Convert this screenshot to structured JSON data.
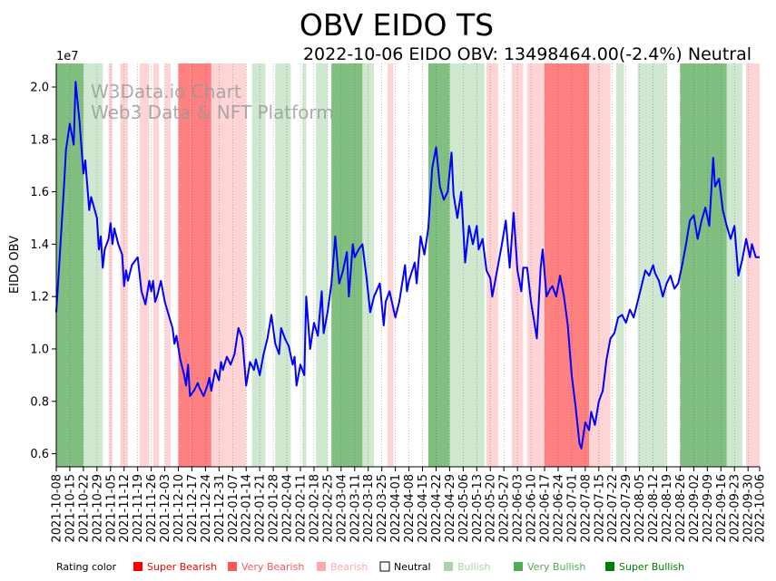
{
  "title": "OBV EIDO TS",
  "subtitle": "2022-10-06 EIDO OBV: 13498464.00(-2.4%) Neutral",
  "watermark": [
    "W3Data.io Chart",
    "Web3 Data & NFT Platform"
  ],
  "legend": {
    "label": "Rating color",
    "items": [
      {
        "label": "Super Bearish",
        "color": "#ff0000"
      },
      {
        "label": "Very Bearish",
        "color": "#ff5555"
      },
      {
        "label": "Bearish",
        "color": "#ffaaaa"
      },
      {
        "label": "Neutral",
        "color": "#ffffff"
      },
      {
        "label": "Bullish",
        "color": "#aad4aa"
      },
      {
        "label": "Very Bullish",
        "color": "#55aa55"
      },
      {
        "label": "Super Bullish",
        "color": "#008000"
      }
    ]
  },
  "colors": {
    "line": "#0000ff",
    "very_bullish": "#55aa55",
    "bullish": "#aad4aa",
    "very_bearish": "#ff5555",
    "bearish": "#ffaaaa"
  },
  "chart_data": {
    "type": "line",
    "ylabel": "EIDO OBV",
    "y_multiplier_label": "1e7",
    "ylim": [
      0.55,
      2.09
    ],
    "yticks": [
      "0.6",
      "0.8",
      "1.0",
      "1.2",
      "1.4",
      "1.6",
      "1.8",
      "2.0"
    ],
    "xticks": [
      "2021-10-08",
      "2021-10-15",
      "2021-10-22",
      "2021-10-29",
      "2021-11-05",
      "2021-11-12",
      "2021-11-19",
      "2021-11-26",
      "2021-12-03",
      "2021-12-10",
      "2021-12-17",
      "2021-12-24",
      "2021-12-31",
      "2022-01-07",
      "2022-01-14",
      "2022-01-21",
      "2022-01-28",
      "2022-02-04",
      "2022-02-11",
      "2022-02-18",
      "2022-02-25",
      "2022-03-04",
      "2022-03-11",
      "2022-03-18",
      "2022-03-25",
      "2022-04-01",
      "2022-04-08",
      "2022-04-15",
      "2022-04-22",
      "2022-04-29",
      "2022-05-06",
      "2022-05-13",
      "2022-05-20",
      "2022-05-27",
      "2022-06-03",
      "2022-06-10",
      "2022-06-17",
      "2022-06-24",
      "2022-07-01",
      "2022-07-08",
      "2022-07-15",
      "2022-07-22",
      "2022-07-29",
      "2022-08-05",
      "2022-08-12",
      "2022-08-19",
      "2022-08-26",
      "2022-09-02",
      "2022-09-09",
      "2022-09-16",
      "2022-09-23",
      "2022-09-30",
      "2022-10-06"
    ],
    "x_range": [
      "2021-10-08",
      "2022-10-06"
    ],
    "series": [
      {
        "values": [
          [
            "2021-10-08",
            1.14
          ],
          [
            "2021-10-10",
            1.38
          ],
          [
            "2021-10-12",
            1.62
          ],
          [
            "2021-10-13",
            1.76
          ],
          [
            "2021-10-15",
            1.86
          ],
          [
            "2021-10-17",
            1.78
          ],
          [
            "2021-10-18",
            2.02
          ],
          [
            "2021-10-20",
            1.87
          ],
          [
            "2021-10-22",
            1.67
          ],
          [
            "2021-10-23",
            1.72
          ],
          [
            "2021-10-25",
            1.53
          ],
          [
            "2021-10-26",
            1.58
          ],
          [
            "2021-10-29",
            1.5
          ],
          [
            "2021-10-30",
            1.38
          ],
          [
            "2021-10-31",
            1.43
          ],
          [
            "2021-11-01",
            1.31
          ],
          [
            "2021-11-02",
            1.38
          ],
          [
            "2021-11-04",
            1.42
          ],
          [
            "2021-11-05",
            1.48
          ],
          [
            "2021-11-06",
            1.4
          ],
          [
            "2021-11-07",
            1.46
          ],
          [
            "2021-11-09",
            1.4
          ],
          [
            "2021-11-11",
            1.36
          ],
          [
            "2021-11-12",
            1.24
          ],
          [
            "2021-11-13",
            1.3
          ],
          [
            "2021-11-14",
            1.26
          ],
          [
            "2021-11-16",
            1.32
          ],
          [
            "2021-11-19",
            1.35
          ],
          [
            "2021-11-21",
            1.22
          ],
          [
            "2021-11-23",
            1.17
          ],
          [
            "2021-11-25",
            1.26
          ],
          [
            "2021-11-26",
            1.22
          ],
          [
            "2021-11-27",
            1.26
          ],
          [
            "2021-11-28",
            1.18
          ],
          [
            "2021-11-29",
            1.2
          ],
          [
            "2021-12-01",
            1.26
          ],
          [
            "2021-12-03",
            1.18
          ],
          [
            "2021-12-05",
            1.13
          ],
          [
            "2021-12-07",
            1.08
          ],
          [
            "2021-12-08",
            1.02
          ],
          [
            "2021-12-09",
            1.05
          ],
          [
            "2021-12-11",
            0.96
          ],
          [
            "2021-12-13",
            0.9
          ],
          [
            "2021-12-14",
            0.86
          ],
          [
            "2021-12-15",
            0.94
          ],
          [
            "2021-12-16",
            0.82
          ],
          [
            "2021-12-18",
            0.84
          ],
          [
            "2021-12-20",
            0.87
          ],
          [
            "2021-12-21",
            0.85
          ],
          [
            "2021-12-23",
            0.82
          ],
          [
            "2021-12-25",
            0.86
          ],
          [
            "2021-12-26",
            0.89
          ],
          [
            "2021-12-27",
            0.84
          ],
          [
            "2021-12-29",
            0.92
          ],
          [
            "2021-12-31",
            0.88
          ],
          [
            "2022-01-01",
            0.95
          ],
          [
            "2022-01-02",
            0.92
          ],
          [
            "2022-01-04",
            0.97
          ],
          [
            "2022-01-06",
            0.94
          ],
          [
            "2022-01-08",
            0.98
          ],
          [
            "2022-01-10",
            1.08
          ],
          [
            "2022-01-12",
            1.04
          ],
          [
            "2022-01-14",
            0.86
          ],
          [
            "2022-01-16",
            0.95
          ],
          [
            "2022-01-18",
            0.92
          ],
          [
            "2022-01-19",
            0.96
          ],
          [
            "2022-01-21",
            0.9
          ],
          [
            "2022-01-23",
            0.98
          ],
          [
            "2022-01-25",
            1.04
          ],
          [
            "2022-01-27",
            1.13
          ],
          [
            "2022-01-29",
            1.02
          ],
          [
            "2022-01-31",
            0.98
          ],
          [
            "2022-02-01",
            1.08
          ],
          [
            "2022-02-03",
            1.04
          ],
          [
            "2022-02-05",
            1.01
          ],
          [
            "2022-02-07",
            0.94
          ],
          [
            "2022-02-08",
            0.97
          ],
          [
            "2022-02-09",
            0.86
          ],
          [
            "2022-02-11",
            0.94
          ],
          [
            "2022-02-13",
            0.9
          ],
          [
            "2022-02-14",
            1.2
          ],
          [
            "2022-02-16",
            1.0
          ],
          [
            "2022-02-18",
            1.1
          ],
          [
            "2022-02-20",
            1.05
          ],
          [
            "2022-02-22",
            1.22
          ],
          [
            "2022-02-23",
            1.06
          ],
          [
            "2022-02-25",
            1.14
          ],
          [
            "2022-02-27",
            1.25
          ],
          [
            "2022-03-01",
            1.43
          ],
          [
            "2022-03-03",
            1.25
          ],
          [
            "2022-03-05",
            1.3
          ],
          [
            "2022-03-07",
            1.37
          ],
          [
            "2022-03-08",
            1.2
          ],
          [
            "2022-03-10",
            1.4
          ],
          [
            "2022-03-11",
            1.35
          ],
          [
            "2022-03-13",
            1.38
          ],
          [
            "2022-03-15",
            1.4
          ],
          [
            "2022-03-17",
            1.28
          ],
          [
            "2022-03-19",
            1.14
          ],
          [
            "2022-03-21",
            1.2
          ],
          [
            "2022-03-24",
            1.25
          ],
          [
            "2022-03-26",
            1.09
          ],
          [
            "2022-03-27",
            1.18
          ],
          [
            "2022-03-29",
            1.22
          ],
          [
            "2022-04-01",
            1.12
          ],
          [
            "2022-04-03",
            1.18
          ],
          [
            "2022-04-06",
            1.32
          ],
          [
            "2022-04-07",
            1.22
          ],
          [
            "2022-04-08",
            1.26
          ],
          [
            "2022-04-11",
            1.33
          ],
          [
            "2022-04-12",
            1.25
          ],
          [
            "2022-04-14",
            1.43
          ],
          [
            "2022-04-16",
            1.36
          ],
          [
            "2022-04-18",
            1.46
          ],
          [
            "2022-04-20",
            1.69
          ],
          [
            "2022-04-22",
            1.77
          ],
          [
            "2022-04-24",
            1.62
          ],
          [
            "2022-04-26",
            1.57
          ],
          [
            "2022-04-28",
            1.6
          ],
          [
            "2022-04-30",
            1.75
          ],
          [
            "2022-05-01",
            1.59
          ],
          [
            "2022-05-03",
            1.5
          ],
          [
            "2022-05-05",
            1.6
          ],
          [
            "2022-05-07",
            1.33
          ],
          [
            "2022-05-09",
            1.47
          ],
          [
            "2022-05-11",
            1.4
          ],
          [
            "2022-05-13",
            1.47
          ],
          [
            "2022-05-14",
            1.38
          ],
          [
            "2022-05-16",
            1.42
          ],
          [
            "2022-05-18",
            1.3
          ],
          [
            "2022-05-20",
            1.27
          ],
          [
            "2022-05-21",
            1.2
          ],
          [
            "2022-05-24",
            1.32
          ],
          [
            "2022-05-26",
            1.4
          ],
          [
            "2022-05-28",
            1.49
          ],
          [
            "2022-05-30",
            1.31
          ],
          [
            "2022-06-01",
            1.52
          ],
          [
            "2022-06-03",
            1.3
          ],
          [
            "2022-06-05",
            1.22
          ],
          [
            "2022-06-06",
            1.31
          ],
          [
            "2022-06-08",
            1.31
          ],
          [
            "2022-06-10",
            1.18
          ],
          [
            "2022-06-13",
            1.04
          ],
          [
            "2022-06-15",
            1.31
          ],
          [
            "2022-06-16",
            1.38
          ],
          [
            "2022-06-18",
            1.2
          ],
          [
            "2022-06-20",
            1.23
          ],
          [
            "2022-06-21",
            1.24
          ],
          [
            "2022-06-23",
            1.2
          ],
          [
            "2022-06-25",
            1.28
          ],
          [
            "2022-06-27",
            1.2
          ],
          [
            "2022-06-29",
            1.09
          ],
          [
            "2022-07-01",
            0.9
          ],
          [
            "2022-07-03",
            0.78
          ],
          [
            "2022-07-05",
            0.64
          ],
          [
            "2022-07-06",
            0.62
          ],
          [
            "2022-07-08",
            0.72
          ],
          [
            "2022-07-10",
            0.69
          ],
          [
            "2022-07-11",
            0.76
          ],
          [
            "2022-07-13",
            0.71
          ],
          [
            "2022-07-15",
            0.8
          ],
          [
            "2022-07-17",
            0.84
          ],
          [
            "2022-07-19",
            0.96
          ],
          [
            "2022-07-21",
            1.04
          ],
          [
            "2022-07-23",
            1.06
          ],
          [
            "2022-07-25",
            1.12
          ],
          [
            "2022-07-27",
            1.13
          ],
          [
            "2022-07-29",
            1.1
          ],
          [
            "2022-07-31",
            1.15
          ],
          [
            "2022-08-02",
            1.12
          ],
          [
            "2022-08-04",
            1.18
          ],
          [
            "2022-08-06",
            1.24
          ],
          [
            "2022-08-08",
            1.3
          ],
          [
            "2022-08-10",
            1.28
          ],
          [
            "2022-08-12",
            1.32
          ],
          [
            "2022-08-13",
            1.29
          ],
          [
            "2022-08-15",
            1.26
          ],
          [
            "2022-08-17",
            1.2
          ],
          [
            "2022-08-19",
            1.25
          ],
          [
            "2022-08-21",
            1.28
          ],
          [
            "2022-08-23",
            1.23
          ],
          [
            "2022-08-25",
            1.25
          ],
          [
            "2022-08-27",
            1.32
          ],
          [
            "2022-08-29",
            1.4
          ],
          [
            "2022-08-31",
            1.49
          ],
          [
            "2022-09-02",
            1.51
          ],
          [
            "2022-09-04",
            1.42
          ],
          [
            "2022-09-06",
            1.49
          ],
          [
            "2022-09-08",
            1.54
          ],
          [
            "2022-09-10",
            1.47
          ],
          [
            "2022-09-12",
            1.73
          ],
          [
            "2022-09-13",
            1.62
          ],
          [
            "2022-09-15",
            1.65
          ],
          [
            "2022-09-17",
            1.53
          ],
          [
            "2022-09-19",
            1.47
          ],
          [
            "2022-09-21",
            1.42
          ],
          [
            "2022-09-23",
            1.47
          ],
          [
            "2022-09-25",
            1.28
          ],
          [
            "2022-09-27",
            1.34
          ],
          [
            "2022-09-29",
            1.42
          ],
          [
            "2022-10-01",
            1.35
          ],
          [
            "2022-10-02",
            1.4
          ],
          [
            "2022-10-04",
            1.35
          ],
          [
            "2022-10-06",
            1.35
          ]
        ]
      }
    ],
    "bands": [
      {
        "start": "2021-10-08",
        "end": "2021-10-22",
        "rating": "Very Bullish"
      },
      {
        "start": "2021-10-22",
        "end": "2021-11-01",
        "rating": "Bullish"
      },
      {
        "start": "2021-11-04",
        "end": "2021-11-06",
        "rating": "Bearish"
      },
      {
        "start": "2021-11-10",
        "end": "2021-11-14",
        "rating": "Bearish"
      },
      {
        "start": "2021-11-20",
        "end": "2021-11-25",
        "rating": "Bearish"
      },
      {
        "start": "2021-11-27",
        "end": "2021-11-30",
        "rating": "Bearish"
      },
      {
        "start": "2021-12-03",
        "end": "2021-12-06",
        "rating": "Bearish"
      },
      {
        "start": "2021-12-10",
        "end": "2021-12-16",
        "rating": "Very Bearish"
      },
      {
        "start": "2021-12-16",
        "end": "2021-12-27",
        "rating": "Very Bearish"
      },
      {
        "start": "2021-12-27",
        "end": "2022-01-14",
        "rating": "Bearish"
      },
      {
        "start": "2022-01-17",
        "end": "2022-01-24",
        "rating": "Bullish"
      },
      {
        "start": "2022-01-29",
        "end": "2022-02-06",
        "rating": "Bullish"
      },
      {
        "start": "2022-02-12",
        "end": "2022-02-14",
        "rating": "Bullish"
      },
      {
        "start": "2022-02-19",
        "end": "2022-02-25",
        "rating": "Bullish"
      },
      {
        "start": "2022-02-27",
        "end": "2022-03-15",
        "rating": "Very Bullish"
      },
      {
        "start": "2022-03-15",
        "end": "2022-03-21",
        "rating": "Bullish"
      },
      {
        "start": "2022-03-28",
        "end": "2022-03-31",
        "rating": "Bearish"
      },
      {
        "start": "2022-04-18",
        "end": "2022-04-29",
        "rating": "Very Bullish"
      },
      {
        "start": "2022-04-29",
        "end": "2022-05-17",
        "rating": "Bullish"
      },
      {
        "start": "2022-05-18",
        "end": "2022-05-24",
        "rating": "Bearish"
      },
      {
        "start": "2022-05-31",
        "end": "2022-06-06",
        "rating": "Bearish"
      },
      {
        "start": "2022-06-08",
        "end": "2022-06-17",
        "rating": "Bearish"
      },
      {
        "start": "2022-06-17",
        "end": "2022-07-10",
        "rating": "Very Bearish"
      },
      {
        "start": "2022-07-10",
        "end": "2022-07-21",
        "rating": "Bearish"
      },
      {
        "start": "2022-07-24",
        "end": "2022-07-28",
        "rating": "Bullish"
      },
      {
        "start": "2022-08-04",
        "end": "2022-08-19",
        "rating": "Bullish"
      },
      {
        "start": "2022-08-26",
        "end": "2022-09-19",
        "rating": "Very Bullish"
      },
      {
        "start": "2022-09-19",
        "end": "2022-09-27",
        "rating": "Bullish"
      },
      {
        "start": "2022-09-29",
        "end": "2022-10-06",
        "rating": "Bearish"
      }
    ]
  }
}
